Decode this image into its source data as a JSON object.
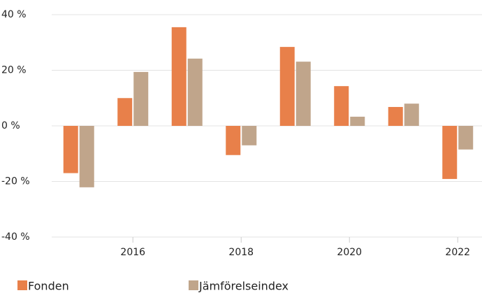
{
  "chart_data": {
    "type": "bar",
    "categories": [
      null,
      "2016",
      null,
      "2018",
      null,
      "2020",
      null,
      "2022"
    ],
    "series": [
      {
        "name": "Fonden",
        "color": "#e8804a",
        "values": [
          -17,
          10,
          35.5,
          -10.5,
          28.4,
          14.3,
          6.8,
          -19.1
        ]
      },
      {
        "name": "Jämförelseindex",
        "color": "#c0a58b",
        "values": [
          -22.1,
          19.4,
          24.2,
          -7,
          23.1,
          3.3,
          8,
          -8.5
        ]
      }
    ],
    "ylim": [
      -40,
      40
    ],
    "yticks": [
      {
        "value": -40,
        "label": "-40 %"
      },
      {
        "value": -20,
        "label": "-20 %"
      },
      {
        "value": 0,
        "label": "0 %"
      },
      {
        "value": 20,
        "label": "20 %"
      },
      {
        "value": 40,
        "label": "40 %"
      }
    ],
    "grid": true,
    "legend": "bottom"
  }
}
